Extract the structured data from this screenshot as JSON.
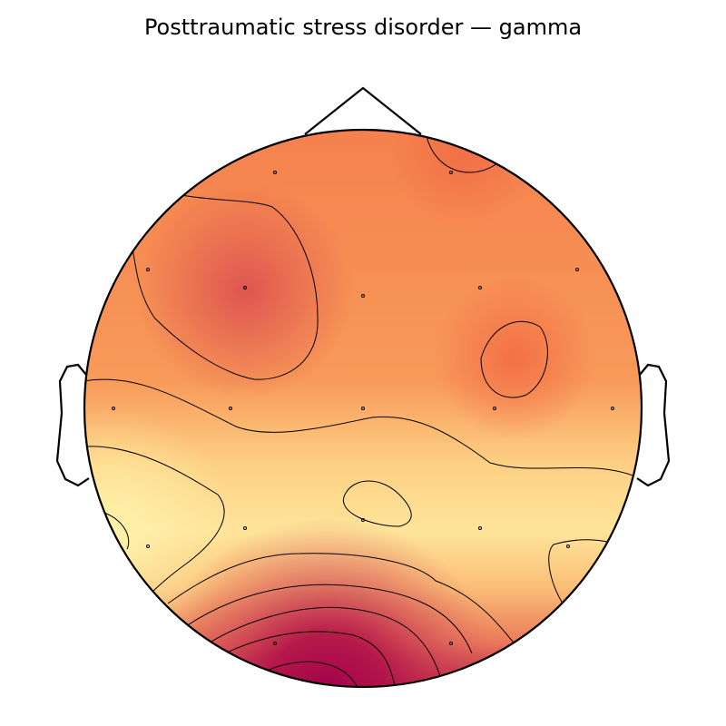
{
  "title": "Posttraumatic stress disorder — gamma"
}
